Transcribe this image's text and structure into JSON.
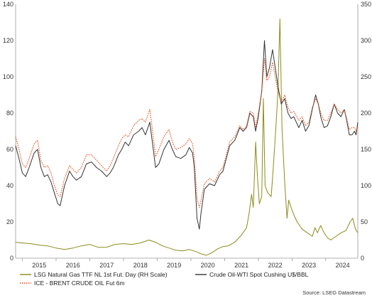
{
  "chart_data": {
    "type": "line",
    "source": "Source: LSEG Datastream",
    "x_ticks": [
      "2015",
      "2016",
      "2017",
      "2018",
      "2019",
      "2020",
      "2021",
      "2022",
      "2023",
      "2024"
    ],
    "y_left_ticks": [
      "0",
      "20",
      "40",
      "60",
      "80",
      "100",
      "120",
      "140"
    ],
    "y_right_ticks": [
      "0",
      "50",
      "100",
      "150",
      "200",
      "250",
      "300",
      "350"
    ],
    "ylim_left": [
      0,
      140
    ],
    "ylim_right": [
      0,
      350
    ],
    "xlim": [
      2014.8,
      2024.95
    ],
    "grid": false,
    "legend_position": "bottom",
    "series": [
      {
        "name": "LSG Natural Gas TTF NL 1st Fut. Day (RH Scale)",
        "axis": "right",
        "color": "#8b8c1a",
        "style": "solid",
        "points": [
          [
            2014.8,
            22
          ],
          [
            2015.0,
            21
          ],
          [
            2015.25,
            20
          ],
          [
            2015.5,
            18
          ],
          [
            2015.75,
            17
          ],
          [
            2016.0,
            14
          ],
          [
            2016.25,
            12
          ],
          [
            2016.5,
            14
          ],
          [
            2016.75,
            17
          ],
          [
            2017.0,
            19
          ],
          [
            2017.25,
            15
          ],
          [
            2017.5,
            15
          ],
          [
            2017.75,
            19
          ],
          [
            2018.0,
            20
          ],
          [
            2018.25,
            19
          ],
          [
            2018.5,
            21
          ],
          [
            2018.75,
            25
          ],
          [
            2018.95,
            22
          ],
          [
            2019.15,
            17
          ],
          [
            2019.35,
            14
          ],
          [
            2019.55,
            11
          ],
          [
            2019.75,
            10
          ],
          [
            2019.95,
            12
          ],
          [
            2020.15,
            9
          ],
          [
            2020.3,
            6
          ],
          [
            2020.45,
            4
          ],
          [
            2020.6,
            7
          ],
          [
            2020.8,
            13
          ],
          [
            2020.95,
            16
          ],
          [
            2021.1,
            17
          ],
          [
            2021.3,
            22
          ],
          [
            2021.5,
            32
          ],
          [
            2021.65,
            42
          ],
          [
            2021.72,
            60
          ],
          [
            2021.8,
            88
          ],
          [
            2021.85,
            70
          ],
          [
            2021.92,
            160
          ],
          [
            2021.97,
            115
          ],
          [
            2022.03,
            75
          ],
          [
            2022.1,
            85
          ],
          [
            2022.15,
            220
          ],
          [
            2022.2,
            100
          ],
          [
            2022.28,
            90
          ],
          [
            2022.38,
            85
          ],
          [
            2022.45,
            130
          ],
          [
            2022.52,
            180
          ],
          [
            2022.58,
            230
          ],
          [
            2022.64,
            330
          ],
          [
            2022.7,
            180
          ],
          [
            2022.78,
            105
          ],
          [
            2022.85,
            55
          ],
          [
            2022.9,
            80
          ],
          [
            2022.97,
            70
          ],
          [
            2023.05,
            60
          ],
          [
            2023.15,
            50
          ],
          [
            2023.3,
            40
          ],
          [
            2023.45,
            35
          ],
          [
            2023.6,
            30
          ],
          [
            2023.68,
            42
          ],
          [
            2023.75,
            35
          ],
          [
            2023.85,
            45
          ],
          [
            2023.95,
            35
          ],
          [
            2024.05,
            28
          ],
          [
            2024.15,
            25
          ],
          [
            2024.3,
            30
          ],
          [
            2024.45,
            35
          ],
          [
            2024.6,
            38
          ],
          [
            2024.72,
            50
          ],
          [
            2024.8,
            55
          ],
          [
            2024.88,
            40
          ],
          [
            2024.95,
            35
          ]
        ]
      },
      {
        "name": "Crude Oil-WTI Spot Cushing U$/BBL",
        "axis": "left",
        "color": "#333333",
        "style": "solid",
        "points": [
          [
            2014.8,
            62
          ],
          [
            2014.9,
            55
          ],
          [
            2015.0,
            47
          ],
          [
            2015.1,
            45
          ],
          [
            2015.2,
            50
          ],
          [
            2015.35,
            58
          ],
          [
            2015.45,
            60
          ],
          [
            2015.55,
            50
          ],
          [
            2015.65,
            45
          ],
          [
            2015.75,
            46
          ],
          [
            2015.85,
            42
          ],
          [
            2015.95,
            36
          ],
          [
            2016.05,
            30
          ],
          [
            2016.12,
            29
          ],
          [
            2016.25,
            40
          ],
          [
            2016.4,
            48
          ],
          [
            2016.5,
            45
          ],
          [
            2016.6,
            43
          ],
          [
            2016.75,
            45
          ],
          [
            2016.9,
            52
          ],
          [
            2017.05,
            53
          ],
          [
            2017.2,
            50
          ],
          [
            2017.35,
            48
          ],
          [
            2017.5,
            45
          ],
          [
            2017.6,
            47
          ],
          [
            2017.7,
            50
          ],
          [
            2017.85,
            57
          ],
          [
            2017.95,
            60
          ],
          [
            2018.05,
            64
          ],
          [
            2018.15,
            62
          ],
          [
            2018.3,
            68
          ],
          [
            2018.45,
            70
          ],
          [
            2018.55,
            72
          ],
          [
            2018.65,
            68
          ],
          [
            2018.78,
            75
          ],
          [
            2018.85,
            65
          ],
          [
            2018.95,
            50
          ],
          [
            2019.05,
            52
          ],
          [
            2019.2,
            60
          ],
          [
            2019.35,
            65
          ],
          [
            2019.45,
            60
          ],
          [
            2019.55,
            56
          ],
          [
            2019.7,
            55
          ],
          [
            2019.85,
            57
          ],
          [
            2019.95,
            61
          ],
          [
            2020.05,
            58
          ],
          [
            2020.1,
            50
          ],
          [
            2020.18,
            22
          ],
          [
            2020.25,
            16
          ],
          [
            2020.3,
            25
          ],
          [
            2020.4,
            38
          ],
          [
            2020.55,
            41
          ],
          [
            2020.7,
            40
          ],
          [
            2020.85,
            46
          ],
          [
            2020.95,
            48
          ],
          [
            2021.05,
            55
          ],
          [
            2021.15,
            62
          ],
          [
            2021.3,
            65
          ],
          [
            2021.45,
            72
          ],
          [
            2021.55,
            70
          ],
          [
            2021.65,
            72
          ],
          [
            2021.75,
            80
          ],
          [
            2021.85,
            78
          ],
          [
            2021.92,
            70
          ],
          [
            2022.0,
            78
          ],
          [
            2022.1,
            92
          ],
          [
            2022.18,
            120
          ],
          [
            2022.25,
            100
          ],
          [
            2022.33,
            105
          ],
          [
            2022.42,
            115
          ],
          [
            2022.5,
            105
          ],
          [
            2022.58,
            95
          ],
          [
            2022.68,
            85
          ],
          [
            2022.78,
            88
          ],
          [
            2022.88,
            80
          ],
          [
            2022.97,
            77
          ],
          [
            2023.05,
            78
          ],
          [
            2023.2,
            72
          ],
          [
            2023.3,
            76
          ],
          [
            2023.4,
            70
          ],
          [
            2023.5,
            73
          ],
          [
            2023.6,
            82
          ],
          [
            2023.7,
            90
          ],
          [
            2023.78,
            85
          ],
          [
            2023.85,
            78
          ],
          [
            2023.95,
            72
          ],
          [
            2024.05,
            73
          ],
          [
            2024.15,
            78
          ],
          [
            2024.25,
            85
          ],
          [
            2024.35,
            80
          ],
          [
            2024.45,
            78
          ],
          [
            2024.55,
            82
          ],
          [
            2024.62,
            76
          ],
          [
            2024.7,
            68
          ],
          [
            2024.78,
            68
          ],
          [
            2024.85,
            70
          ],
          [
            2024.9,
            68
          ],
          [
            2024.95,
            75
          ]
        ]
      },
      {
        "name": "ICE - BRENT CRUDE OIL Fut 6m",
        "axis": "left",
        "color": "#e0551f",
        "style": "dotted",
        "points": [
          [
            2014.8,
            67
          ],
          [
            2014.9,
            60
          ],
          [
            2015.0,
            52
          ],
          [
            2015.1,
            50
          ],
          [
            2015.2,
            55
          ],
          [
            2015.35,
            63
          ],
          [
            2015.45,
            65
          ],
          [
            2015.55,
            54
          ],
          [
            2015.65,
            50
          ],
          [
            2015.75,
            51
          ],
          [
            2015.85,
            47
          ],
          [
            2015.95,
            40
          ],
          [
            2016.05,
            35
          ],
          [
            2016.12,
            34
          ],
          [
            2016.25,
            44
          ],
          [
            2016.4,
            51
          ],
          [
            2016.5,
            49
          ],
          [
            2016.6,
            47
          ],
          [
            2016.75,
            50
          ],
          [
            2016.9,
            57
          ],
          [
            2017.05,
            57
          ],
          [
            2017.2,
            54
          ],
          [
            2017.35,
            51
          ],
          [
            2017.5,
            48
          ],
          [
            2017.6,
            51
          ],
          [
            2017.7,
            55
          ],
          [
            2017.85,
            62
          ],
          [
            2017.95,
            66
          ],
          [
            2018.05,
            68
          ],
          [
            2018.15,
            67
          ],
          [
            2018.3,
            73
          ],
          [
            2018.45,
            76
          ],
          [
            2018.55,
            77
          ],
          [
            2018.65,
            75
          ],
          [
            2018.78,
            82
          ],
          [
            2018.85,
            72
          ],
          [
            2018.95,
            56
          ],
          [
            2019.05,
            60
          ],
          [
            2019.2,
            67
          ],
          [
            2019.35,
            71
          ],
          [
            2019.45,
            64
          ],
          [
            2019.55,
            60
          ],
          [
            2019.7,
            61
          ],
          [
            2019.85,
            63
          ],
          [
            2019.95,
            66
          ],
          [
            2020.05,
            63
          ],
          [
            2020.1,
            55
          ],
          [
            2020.18,
            33
          ],
          [
            2020.25,
            28
          ],
          [
            2020.3,
            32
          ],
          [
            2020.4,
            41
          ],
          [
            2020.55,
            44
          ],
          [
            2020.7,
            42
          ],
          [
            2020.85,
            48
          ],
          [
            2020.95,
            50
          ],
          [
            2021.05,
            57
          ],
          [
            2021.15,
            64
          ],
          [
            2021.3,
            67
          ],
          [
            2021.45,
            73
          ],
          [
            2021.55,
            71
          ],
          [
            2021.65,
            73
          ],
          [
            2021.75,
            81
          ],
          [
            2021.85,
            80
          ],
          [
            2021.92,
            72
          ],
          [
            2022.0,
            80
          ],
          [
            2022.1,
            92
          ],
          [
            2022.18,
            110
          ],
          [
            2022.25,
            98
          ],
          [
            2022.33,
            100
          ],
          [
            2022.42,
            108
          ],
          [
            2022.5,
            100
          ],
          [
            2022.58,
            92
          ],
          [
            2022.68,
            86
          ],
          [
            2022.78,
            90
          ],
          [
            2022.88,
            83
          ],
          [
            2022.97,
            80
          ],
          [
            2023.05,
            81
          ],
          [
            2023.2,
            76
          ],
          [
            2023.3,
            78
          ],
          [
            2023.4,
            73
          ],
          [
            2023.5,
            75
          ],
          [
            2023.6,
            83
          ],
          [
            2023.7,
            88
          ],
          [
            2023.78,
            85
          ],
          [
            2023.85,
            80
          ],
          [
            2023.95,
            76
          ],
          [
            2024.05,
            76
          ],
          [
            2024.15,
            80
          ],
          [
            2024.25,
            85
          ],
          [
            2024.35,
            82
          ],
          [
            2024.45,
            80
          ],
          [
            2024.55,
            82
          ],
          [
            2024.62,
            77
          ],
          [
            2024.7,
            71
          ],
          [
            2024.78,
            72
          ],
          [
            2024.85,
            72
          ],
          [
            2024.9,
            70
          ],
          [
            2024.95,
            73
          ]
        ]
      }
    ]
  }
}
